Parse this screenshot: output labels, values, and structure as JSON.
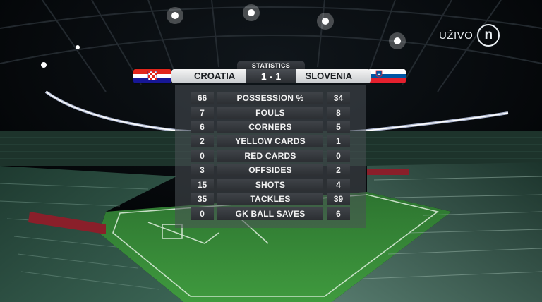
{
  "broadcast": {
    "live_label": "UŽIVO",
    "logo_letter": "n"
  },
  "scoreboard": {
    "title": "STATISTICS",
    "home_team": "CROATIA",
    "away_team": "SLOVENIA",
    "home_score": "1",
    "separator": "-",
    "away_score": "1",
    "home_flag_colors": [
      "#e1261c",
      "#ffffff",
      "#171796"
    ],
    "away_flag_colors": [
      "#ffffff",
      "#0055a4",
      "#e5202e"
    ]
  },
  "stats": [
    {
      "label": "POSSESSION %",
      "home": "66",
      "away": "34"
    },
    {
      "label": "FOULS",
      "home": "7",
      "away": "8"
    },
    {
      "label": "CORNERS",
      "home": "6",
      "away": "5"
    },
    {
      "label": "YELLOW CARDS",
      "home": "2",
      "away": "1"
    },
    {
      "label": "RED CARDS",
      "home": "0",
      "away": "0"
    },
    {
      "label": "OFFSIDES",
      "home": "3",
      "away": "2"
    },
    {
      "label": "SHOTS",
      "home": "15",
      "away": "4"
    },
    {
      "label": "TACKLES",
      "home": "35",
      "away": "39"
    },
    {
      "label": "GK BALL SAVES",
      "home": "0",
      "away": "6"
    }
  ],
  "colors": {
    "pitch": "#2f7a32",
    "pitch_light": "#3c8f3c",
    "seats": "#2c4f43",
    "roof": "#0f1418"
  }
}
